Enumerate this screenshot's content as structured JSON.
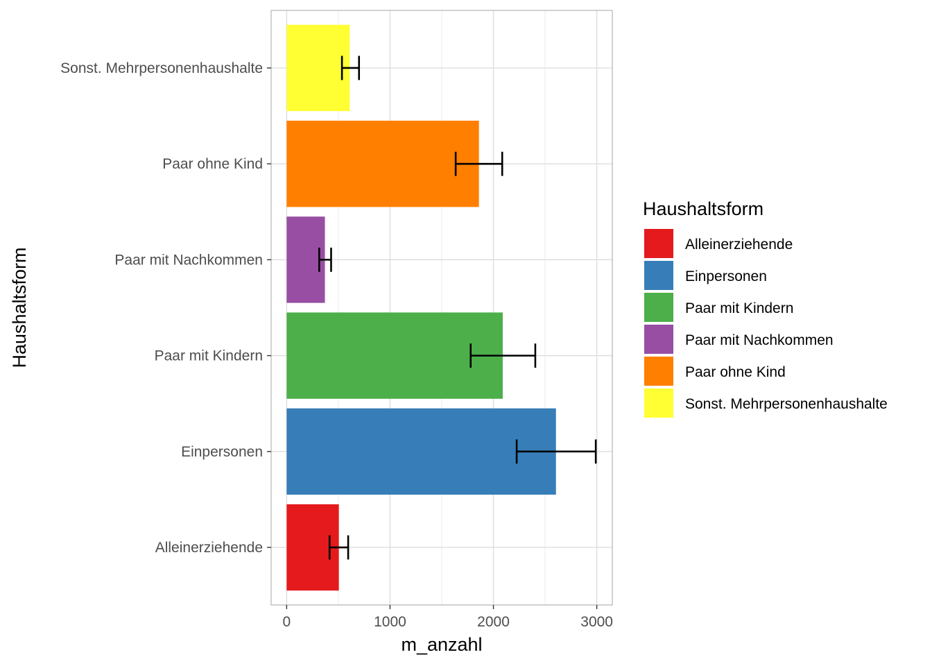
{
  "chart_data": {
    "type": "bar",
    "orientation": "horizontal",
    "xlabel": "m_anzahl",
    "ylabel": "Haushaltsform",
    "xlim": [
      -150,
      3150
    ],
    "x_ticks": [
      0,
      1000,
      2000,
      3000
    ],
    "x_tick_labels": [
      "0",
      "1000",
      "2000",
      "3000"
    ],
    "grid": true,
    "categories": [
      "Alleinerziehende",
      "Einpersonen",
      "Paar mit Kindern",
      "Paar mit Nachkommen",
      "Paar ohne Kind",
      "Sonst. Mehrpersonenhaushalte"
    ],
    "values": [
      505,
      2605,
      2090,
      370,
      1860,
      610
    ],
    "error_low": [
      415,
      2225,
      1780,
      315,
      1635,
      535
    ],
    "error_high": [
      595,
      2990,
      2405,
      430,
      2085,
      700
    ],
    "colors": [
      "#E41A1C",
      "#377EB8",
      "#4DAF4A",
      "#984EA3",
      "#FF7F00",
      "#FFFF33"
    ],
    "legend": {
      "title": "Haushaltsform",
      "position": "right",
      "entries": [
        "Alleinerziehende",
        "Einpersonen",
        "Paar mit Kindern",
        "Paar mit Nachkommen",
        "Paar ohne Kind",
        "Sonst. Mehrpersonenhaushalte"
      ]
    }
  }
}
